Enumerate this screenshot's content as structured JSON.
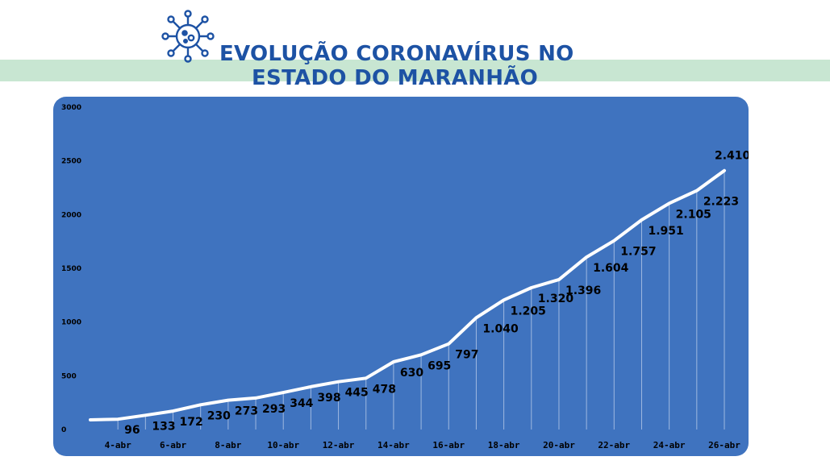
{
  "header": {
    "title_line1": "EVOLUÇÃO CORONAVÍRUS NO",
    "title_line2": "ESTADO DO MARANHÃO",
    "icon": "virus-icon"
  },
  "colors": {
    "band": "#c8e6d2",
    "title": "#1d52a4",
    "chart_background": "#3f73bf",
    "line": "#ffffff",
    "drop_lines": "#9eb8e0"
  },
  "chart_data": {
    "type": "line",
    "title": "",
    "xlabel": "",
    "ylabel": "",
    "ylim": [
      0,
      3000
    ],
    "y_ticks": [
      "0",
      "500",
      "1000",
      "1500",
      "2000",
      "2500",
      "3000"
    ],
    "grid": false,
    "x_tick_labels": [
      "4-abr",
      "6-abr",
      "8-abr",
      "10-abr",
      "12-abr",
      "14-abr",
      "16-abr",
      "18-abr",
      "20-abr",
      "22-abr",
      "24-abr",
      "26-abr"
    ],
    "line_x": [
      "3-abr",
      "4-abr",
      "5-abr",
      "6-abr",
      "7-abr",
      "8-abr",
      "9-abr",
      "10-abr",
      "11-abr",
      "12-abr",
      "13-abr",
      "14-abr",
      "15-abr",
      "16-abr",
      "17-abr",
      "18-abr",
      "19-abr",
      "20-abr",
      "21-abr",
      "22-abr",
      "23-abr",
      "24-abr",
      "25-abr",
      "26-abr"
    ],
    "line_y": [
      90,
      96,
      133,
      172,
      230,
      273,
      293,
      344,
      398,
      445,
      478,
      630,
      695,
      797,
      1040,
      1205,
      1320,
      1396,
      1604,
      1757,
      1951,
      2105,
      2223,
      2410
    ],
    "point_labels": [
      {
        "x": "4-abr",
        "label": "96"
      },
      {
        "x": "5-abr",
        "label": "133"
      },
      {
        "x": "6-abr",
        "label": "172"
      },
      {
        "x": "7-abr",
        "label": "230"
      },
      {
        "x": "8-abr",
        "label": "273"
      },
      {
        "x": "9-abr",
        "label": "293"
      },
      {
        "x": "10-abr",
        "label": "344"
      },
      {
        "x": "11-abr",
        "label": "398"
      },
      {
        "x": "12-abr",
        "label": "445"
      },
      {
        "x": "13-abr",
        "label": "478"
      },
      {
        "x": "14-abr",
        "label": "630"
      },
      {
        "x": "15-abr",
        "label": "695"
      },
      {
        "x": "16-abr",
        "label": "797"
      },
      {
        "x": "17-abr",
        "label": "1.040"
      },
      {
        "x": "18-abr",
        "label": "1.205"
      },
      {
        "x": "19-abr",
        "label": "1.320"
      },
      {
        "x": "20-abr",
        "label": "1.396"
      },
      {
        "x": "21-abr",
        "label": "1.604"
      },
      {
        "x": "22-abr",
        "label": "1.757"
      },
      {
        "x": "23-abr",
        "label": "1.951"
      },
      {
        "x": "24-abr",
        "label": "2.105"
      },
      {
        "x": "25-abr",
        "label": "2.223"
      },
      {
        "x": "26-abr",
        "label": "2.410"
      }
    ]
  }
}
